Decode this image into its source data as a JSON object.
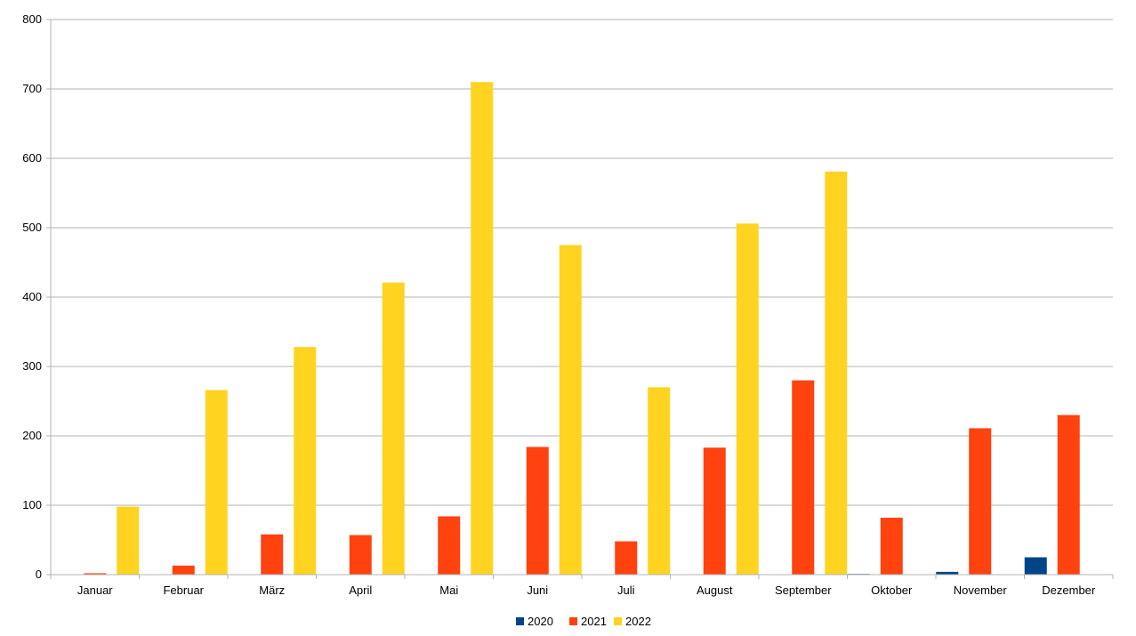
{
  "chart_data": {
    "type": "bar",
    "title": "",
    "xlabel": "",
    "ylabel": "",
    "ylim": [
      0,
      800
    ],
    "yticks": [
      0,
      100,
      200,
      300,
      400,
      500,
      600,
      700,
      800
    ],
    "grid": true,
    "legend": "bottom-center",
    "categories": [
      "Januar",
      "Februar",
      "März",
      "April",
      "Mai",
      "Juni",
      "Juli",
      "August",
      "September",
      "Oktober",
      "November",
      "Dezember"
    ],
    "series": [
      {
        "name": "2020",
        "color": "#004586",
        "values": [
          0,
          0,
          0,
          0,
          0,
          0,
          0,
          0,
          0,
          1,
          4,
          25
        ]
      },
      {
        "name": "2021",
        "color": "#ff420e",
        "values": [
          2,
          13,
          58,
          57,
          84,
          184,
          48,
          183,
          280,
          82,
          211,
          230
        ]
      },
      {
        "name": "2022",
        "color": "#ffd320",
        "values": [
          98,
          266,
          328,
          421,
          710,
          475,
          270,
          506,
          581,
          0,
          0,
          0
        ]
      }
    ]
  }
}
